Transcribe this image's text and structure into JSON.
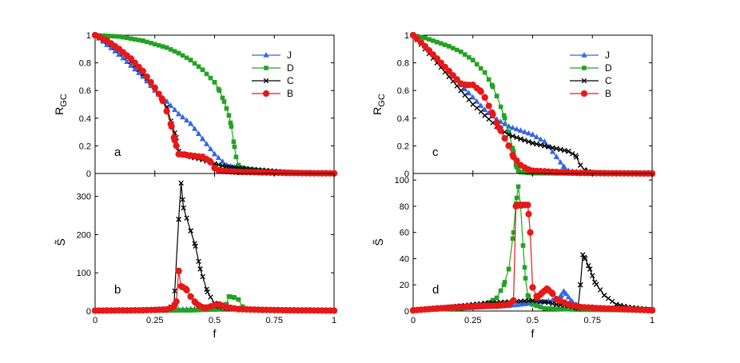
{
  "figure": {
    "x_axis_label": "f",
    "y_label_top": "R",
    "y_label_top_sub": "GC",
    "y_label_bottom": "S̃",
    "x_tick_labels": [
      "0",
      "0.25",
      "0.5",
      "0.75",
      "1"
    ]
  },
  "series_style": {
    "J": {
      "color": "#3366e6",
      "marker": "triangle"
    },
    "D": {
      "color": "#22a322",
      "marker": "square"
    },
    "C": {
      "color": "#000000",
      "marker": "x"
    },
    "B": {
      "color": "#e61919",
      "marker": "circle"
    }
  },
  "legend": {
    "entries": [
      "J",
      "D",
      "C",
      "B"
    ]
  },
  "chart_data": [
    {
      "panel": "a",
      "type": "line",
      "xlabel": "",
      "ylabel": "R_GC",
      "xlim": [
        0,
        1
      ],
      "ylim": [
        0,
        1
      ],
      "yticks": [
        "0",
        "0.2",
        "0.4",
        "0.6",
        "0.8",
        "1"
      ],
      "legend": true,
      "series": [
        {
          "name": "J",
          "x": [
            0,
            0.05,
            0.1,
            0.15,
            0.2,
            0.25,
            0.3,
            0.35,
            0.4,
            0.45,
            0.5,
            0.55,
            0.6,
            0.65,
            0.7,
            0.8,
            0.9,
            1
          ],
          "y": [
            1,
            0.93,
            0.86,
            0.78,
            0.7,
            0.6,
            0.52,
            0.43,
            0.36,
            0.25,
            0.14,
            0.06,
            0.04,
            0.025,
            0.015,
            0.008,
            0.004,
            0.002
          ]
        },
        {
          "name": "D",
          "x": [
            0,
            0.1,
            0.2,
            0.3,
            0.35,
            0.4,
            0.45,
            0.5,
            0.52,
            0.54,
            0.56,
            0.57,
            0.58,
            0.59,
            0.6,
            0.62,
            0.65,
            0.7,
            0.8,
            0.9,
            1
          ],
          "y": [
            1,
            0.99,
            0.96,
            0.91,
            0.87,
            0.82,
            0.75,
            0.66,
            0.6,
            0.52,
            0.42,
            0.34,
            0.23,
            0.12,
            0.06,
            0.04,
            0.03,
            0.02,
            0.008,
            0.003,
            0.001
          ]
        },
        {
          "name": "C",
          "x": [
            0,
            0.05,
            0.1,
            0.15,
            0.2,
            0.25,
            0.3,
            0.32,
            0.34,
            0.35,
            0.37,
            0.4,
            0.45,
            0.5,
            0.55,
            0.6,
            0.7,
            0.8,
            0.9,
            1
          ],
          "y": [
            1,
            0.95,
            0.89,
            0.81,
            0.72,
            0.62,
            0.48,
            0.36,
            0.26,
            0.16,
            0.14,
            0.12,
            0.1,
            0.07,
            0.05,
            0.04,
            0.025,
            0.01,
            0.004,
            0.001
          ]
        },
        {
          "name": "B",
          "x": [
            0,
            0.05,
            0.1,
            0.15,
            0.2,
            0.25,
            0.28,
            0.3,
            0.32,
            0.33,
            0.34,
            0.35,
            0.4,
            0.45,
            0.48,
            0.5,
            0.52,
            0.6,
            0.7,
            0.8,
            0.9,
            1
          ],
          "y": [
            1,
            0.96,
            0.9,
            0.83,
            0.74,
            0.62,
            0.54,
            0.45,
            0.34,
            0.26,
            0.2,
            0.14,
            0.13,
            0.12,
            0.09,
            0.04,
            0.02,
            0.012,
            0.008,
            0.004,
            0.002,
            0.001
          ]
        }
      ]
    },
    {
      "panel": "b",
      "type": "line",
      "xlabel": "f",
      "ylabel": "S̃",
      "xlim": [
        0,
        1
      ],
      "ylim": [
        0,
        360
      ],
      "yticks": [
        "0",
        "100",
        "200",
        "300"
      ],
      "legend": false,
      "series": [
        {
          "name": "J",
          "x": [
            0,
            0.2,
            0.3,
            0.35,
            0.4,
            0.45,
            0.5,
            0.55,
            0.6,
            0.7,
            0.8,
            1
          ],
          "y": [
            1,
            2,
            3,
            4,
            5,
            6,
            8,
            10,
            6,
            3,
            2,
            1
          ]
        },
        {
          "name": "D",
          "x": [
            0,
            0.2,
            0.4,
            0.5,
            0.54,
            0.55,
            0.56,
            0.58,
            0.6,
            0.62,
            0.65,
            0.7,
            1
          ],
          "y": [
            1,
            1,
            2,
            4,
            8,
            18,
            38,
            36,
            30,
            8,
            4,
            2,
            1
          ]
        },
        {
          "name": "C",
          "x": [
            0,
            0.2,
            0.3,
            0.33,
            0.35,
            0.36,
            0.37,
            0.4,
            0.42,
            0.44,
            0.47,
            0.5,
            0.52,
            0.55,
            0.6,
            0.7,
            0.8,
            1
          ],
          "y": [
            1,
            2,
            5,
            15,
            240,
            335,
            270,
            210,
            170,
            110,
            50,
            20,
            12,
            8,
            5,
            3,
            2,
            1
          ]
        },
        {
          "name": "B",
          "x": [
            0,
            0.2,
            0.3,
            0.33,
            0.34,
            0.35,
            0.36,
            0.38,
            0.4,
            0.42,
            0.44,
            0.46,
            0.5,
            0.52,
            0.55,
            0.6,
            0.7,
            0.8,
            1
          ],
          "y": [
            1,
            2,
            4,
            12,
            25,
            105,
            65,
            58,
            38,
            22,
            12,
            8,
            15,
            17,
            10,
            5,
            3,
            2,
            1
          ]
        }
      ]
    },
    {
      "panel": "c",
      "type": "line",
      "xlabel": "",
      "ylabel": "R_GC",
      "xlim": [
        0,
        1
      ],
      "ylim": [
        0,
        1
      ],
      "yticks": [
        "0",
        "0.2",
        "0.4",
        "0.6",
        "0.8",
        "1"
      ],
      "legend": true,
      "series": [
        {
          "name": "J",
          "x": [
            0,
            0.05,
            0.1,
            0.15,
            0.2,
            0.25,
            0.3,
            0.35,
            0.4,
            0.45,
            0.5,
            0.55,
            0.6,
            0.63,
            0.65,
            0.7,
            0.8,
            0.9,
            1
          ],
          "y": [
            1,
            0.92,
            0.83,
            0.73,
            0.64,
            0.55,
            0.46,
            0.39,
            0.34,
            0.31,
            0.28,
            0.23,
            0.12,
            0.05,
            0.02,
            0.008,
            0.003,
            0.001,
            0
          ]
        },
        {
          "name": "D",
          "x": [
            0,
            0.05,
            0.1,
            0.15,
            0.2,
            0.25,
            0.3,
            0.33,
            0.35,
            0.38,
            0.4,
            0.42,
            0.43,
            0.44,
            0.45,
            0.48,
            0.5,
            0.6,
            0.8,
            1
          ],
          "y": [
            1,
            0.98,
            0.95,
            0.92,
            0.88,
            0.82,
            0.73,
            0.64,
            0.56,
            0.42,
            0.3,
            0.16,
            0.06,
            0.02,
            0.01,
            0.005,
            0.002,
            0.001,
            0,
            0
          ]
        },
        {
          "name": "C",
          "x": [
            0,
            0.05,
            0.1,
            0.15,
            0.2,
            0.25,
            0.3,
            0.35,
            0.4,
            0.45,
            0.5,
            0.55,
            0.6,
            0.65,
            0.68,
            0.7,
            0.72,
            0.75,
            0.8,
            0.9,
            1
          ],
          "y": [
            1,
            0.9,
            0.8,
            0.7,
            0.6,
            0.5,
            0.42,
            0.34,
            0.28,
            0.25,
            0.22,
            0.2,
            0.18,
            0.16,
            0.13,
            0.06,
            0.02,
            0.008,
            0.003,
            0.001,
            0
          ]
        },
        {
          "name": "B",
          "x": [
            0,
            0.05,
            0.1,
            0.15,
            0.2,
            0.22,
            0.25,
            0.28,
            0.3,
            0.33,
            0.36,
            0.4,
            0.42,
            0.45,
            0.48,
            0.5,
            0.55,
            0.6,
            0.7,
            0.8,
            1
          ],
          "y": [
            1,
            0.92,
            0.83,
            0.74,
            0.65,
            0.64,
            0.64,
            0.6,
            0.55,
            0.44,
            0.33,
            0.2,
            0.12,
            0.06,
            0.03,
            0.02,
            0.015,
            0.01,
            0.004,
            0.002,
            0
          ]
        }
      ]
    },
    {
      "panel": "d",
      "type": "line",
      "xlabel": "f",
      "ylabel": "S̃",
      "xlim": [
        0,
        1
      ],
      "ylim": [
        0,
        105
      ],
      "yticks": [
        "0",
        "20",
        "40",
        "60",
        "80",
        "100"
      ],
      "legend": false,
      "series": [
        {
          "name": "J",
          "x": [
            0,
            0.2,
            0.3,
            0.4,
            0.45,
            0.5,
            0.55,
            0.6,
            0.62,
            0.63,
            0.64,
            0.66,
            0.68,
            0.7,
            0.75,
            0.8,
            0.9,
            1
          ],
          "y": [
            0.5,
            2,
            3,
            4,
            5,
            6,
            7,
            9,
            12,
            15,
            13,
            8,
            5,
            3,
            2,
            1.5,
            1,
            0.5
          ]
        },
        {
          "name": "D",
          "x": [
            0,
            0.2,
            0.3,
            0.35,
            0.38,
            0.4,
            0.42,
            0.43,
            0.44,
            0.45,
            0.46,
            0.47,
            0.48,
            0.5,
            0.55,
            0.7,
            1
          ],
          "y": [
            0.5,
            2,
            5,
            10,
            20,
            32,
            60,
            82,
            95,
            80,
            50,
            25,
            12,
            5,
            2,
            1,
            0.5
          ]
        },
        {
          "name": "C",
          "x": [
            0,
            0.1,
            0.2,
            0.25,
            0.3,
            0.4,
            0.5,
            0.55,
            0.6,
            0.65,
            0.68,
            0.69,
            0.7,
            0.71,
            0.72,
            0.74,
            0.76,
            0.8,
            0.85,
            0.9,
            1
          ],
          "y": [
            0.5,
            2,
            4,
            5,
            6,
            7,
            8,
            7,
            5,
            4,
            3,
            2,
            20,
            43,
            40,
            32,
            22,
            12,
            5,
            3,
            1
          ]
        },
        {
          "name": "B",
          "x": [
            0,
            0.1,
            0.2,
            0.3,
            0.35,
            0.4,
            0.42,
            0.43,
            0.44,
            0.45,
            0.46,
            0.47,
            0.48,
            0.49,
            0.5,
            0.52,
            0.54,
            0.56,
            0.58,
            0.6,
            0.65,
            0.7,
            0.8,
            1
          ],
          "y": [
            0.5,
            2,
            3,
            4,
            4,
            5,
            8,
            80,
            81,
            81,
            81,
            81,
            81,
            60,
            18,
            10,
            14,
            17,
            14,
            9,
            5,
            3,
            2,
            0.5
          ]
        }
      ]
    }
  ]
}
